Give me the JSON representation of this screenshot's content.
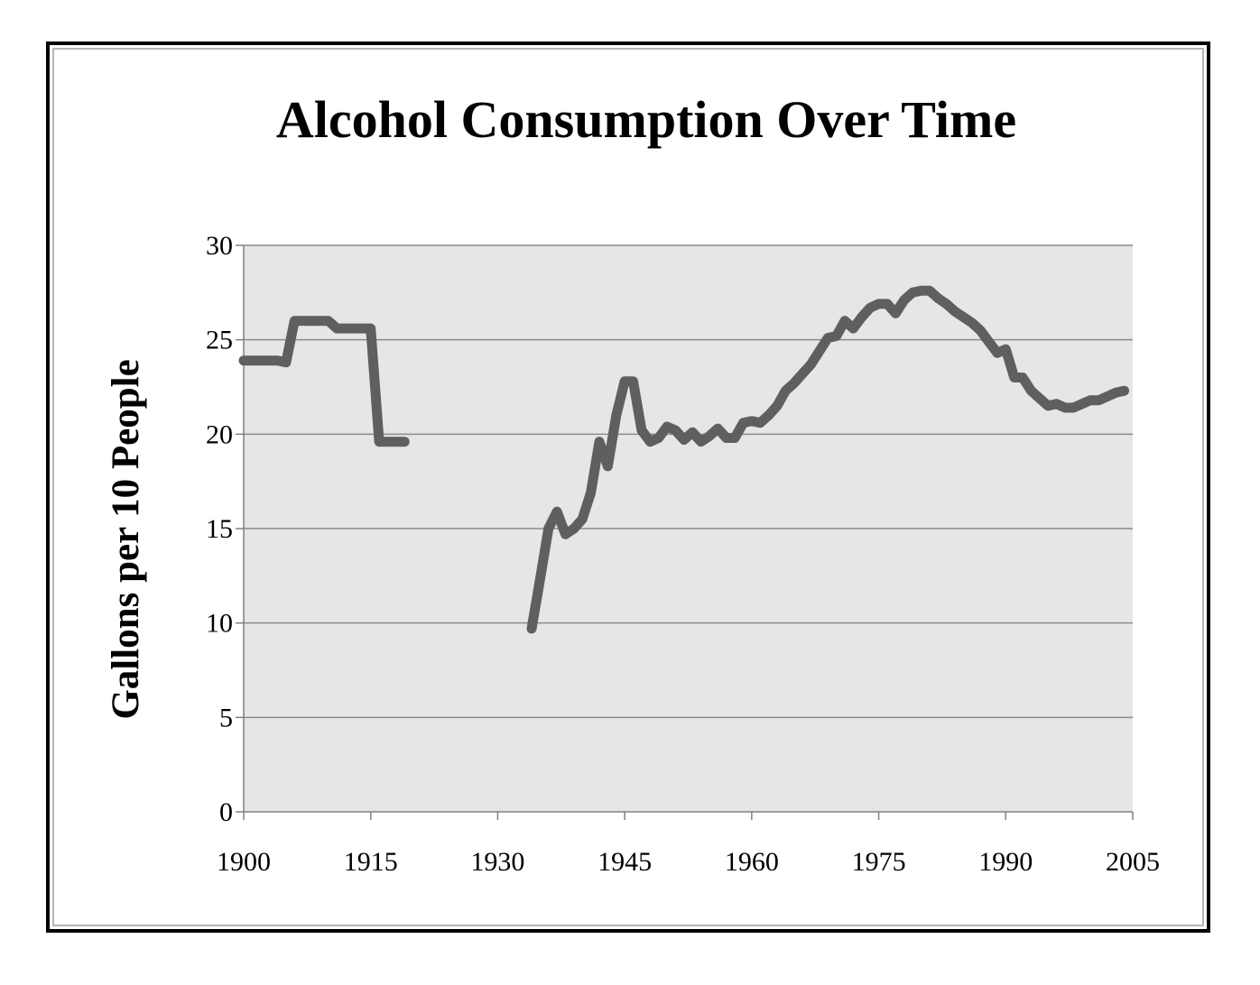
{
  "chart_data": {
    "type": "line",
    "title": "Alcohol Consumption Over Time",
    "xlabel": "",
    "ylabel": "Gallons per 10 People",
    "xlim": [
      1900,
      2005
    ],
    "ylim": [
      0,
      30
    ],
    "x_ticks": [
      "1900",
      "1915",
      "1930",
      "1945",
      "1960",
      "1975",
      "1990",
      "2005"
    ],
    "y_ticks": [
      "0",
      "5",
      "10",
      "15",
      "20",
      "25",
      "30"
    ],
    "grid": "horizontal",
    "legend": "none",
    "colors": {
      "line": "#5f5f5f",
      "plot_bg": "#e6e6e6",
      "grid": "#8c8c8c",
      "axis": "#808080"
    },
    "series": [
      {
        "segments": [
          [
            [
              1900,
              23.9
            ],
            [
              1901,
              23.9
            ],
            [
              1902,
              23.9
            ],
            [
              1903,
              23.9
            ],
            [
              1904,
              23.9
            ],
            [
              1905,
              23.8
            ],
            [
              1906,
              26.0
            ],
            [
              1907,
              26.0
            ],
            [
              1908,
              26.0
            ],
            [
              1909,
              26.0
            ],
            [
              1910,
              26.0
            ],
            [
              1911,
              25.6
            ],
            [
              1912,
              25.6
            ],
            [
              1913,
              25.6
            ],
            [
              1914,
              25.6
            ],
            [
              1915,
              25.6
            ],
            [
              1916,
              19.6
            ],
            [
              1917,
              19.6
            ],
            [
              1918,
              19.6
            ],
            [
              1919,
              19.6
            ]
          ],
          [
            [
              1934,
              9.7
            ],
            [
              1935,
              12.3
            ],
            [
              1936,
              15.0
            ],
            [
              1937,
              15.9
            ],
            [
              1938,
              14.7
            ],
            [
              1939,
              15.0
            ],
            [
              1940,
              15.5
            ],
            [
              1941,
              16.9
            ],
            [
              1942,
              19.6
            ],
            [
              1943,
              18.3
            ],
            [
              1944,
              21.0
            ],
            [
              1945,
              22.8
            ],
            [
              1946,
              22.8
            ],
            [
              1947,
              20.2
            ],
            [
              1948,
              19.6
            ],
            [
              1949,
              19.8
            ],
            [
              1950,
              20.4
            ],
            [
              1951,
              20.2
            ],
            [
              1952,
              19.7
            ],
            [
              1953,
              20.1
            ],
            [
              1954,
              19.6
            ],
            [
              1955,
              19.9
            ],
            [
              1956,
              20.3
            ],
            [
              1957,
              19.8
            ],
            [
              1958,
              19.8
            ],
            [
              1959,
              20.6
            ],
            [
              1960,
              20.7
            ],
            [
              1961,
              20.6
            ],
            [
              1962,
              21.0
            ],
            [
              1963,
              21.5
            ],
            [
              1964,
              22.3
            ],
            [
              1965,
              22.7
            ],
            [
              1966,
              23.2
            ],
            [
              1967,
              23.7
            ],
            [
              1968,
              24.4
            ],
            [
              1969,
              25.1
            ],
            [
              1970,
              25.2
            ],
            [
              1971,
              26.0
            ],
            [
              1972,
              25.6
            ],
            [
              1973,
              26.2
            ],
            [
              1974,
              26.7
            ],
            [
              1975,
              26.9
            ],
            [
              1976,
              26.9
            ],
            [
              1977,
              26.4
            ],
            [
              1978,
              27.1
            ],
            [
              1979,
              27.5
            ],
            [
              1980,
              27.6
            ],
            [
              1981,
              27.6
            ],
            [
              1982,
              27.2
            ],
            [
              1983,
              26.9
            ],
            [
              1984,
              26.5
            ],
            [
              1985,
              26.2
            ],
            [
              1986,
              25.9
            ],
            [
              1987,
              25.5
            ],
            [
              1988,
              24.9
            ],
            [
              1989,
              24.3
            ],
            [
              1990,
              24.5
            ],
            [
              1991,
              23.0
            ],
            [
              1992,
              23.0
            ],
            [
              1993,
              22.3
            ],
            [
              1994,
              21.9
            ],
            [
              1995,
              21.5
            ],
            [
              1996,
              21.6
            ],
            [
              1997,
              21.4
            ],
            [
              1998,
              21.4
            ],
            [
              1999,
              21.6
            ],
            [
              2000,
              21.8
            ],
            [
              2001,
              21.8
            ],
            [
              2002,
              22.0
            ],
            [
              2003,
              22.2
            ],
            [
              2004,
              22.3
            ]
          ]
        ]
      }
    ]
  }
}
